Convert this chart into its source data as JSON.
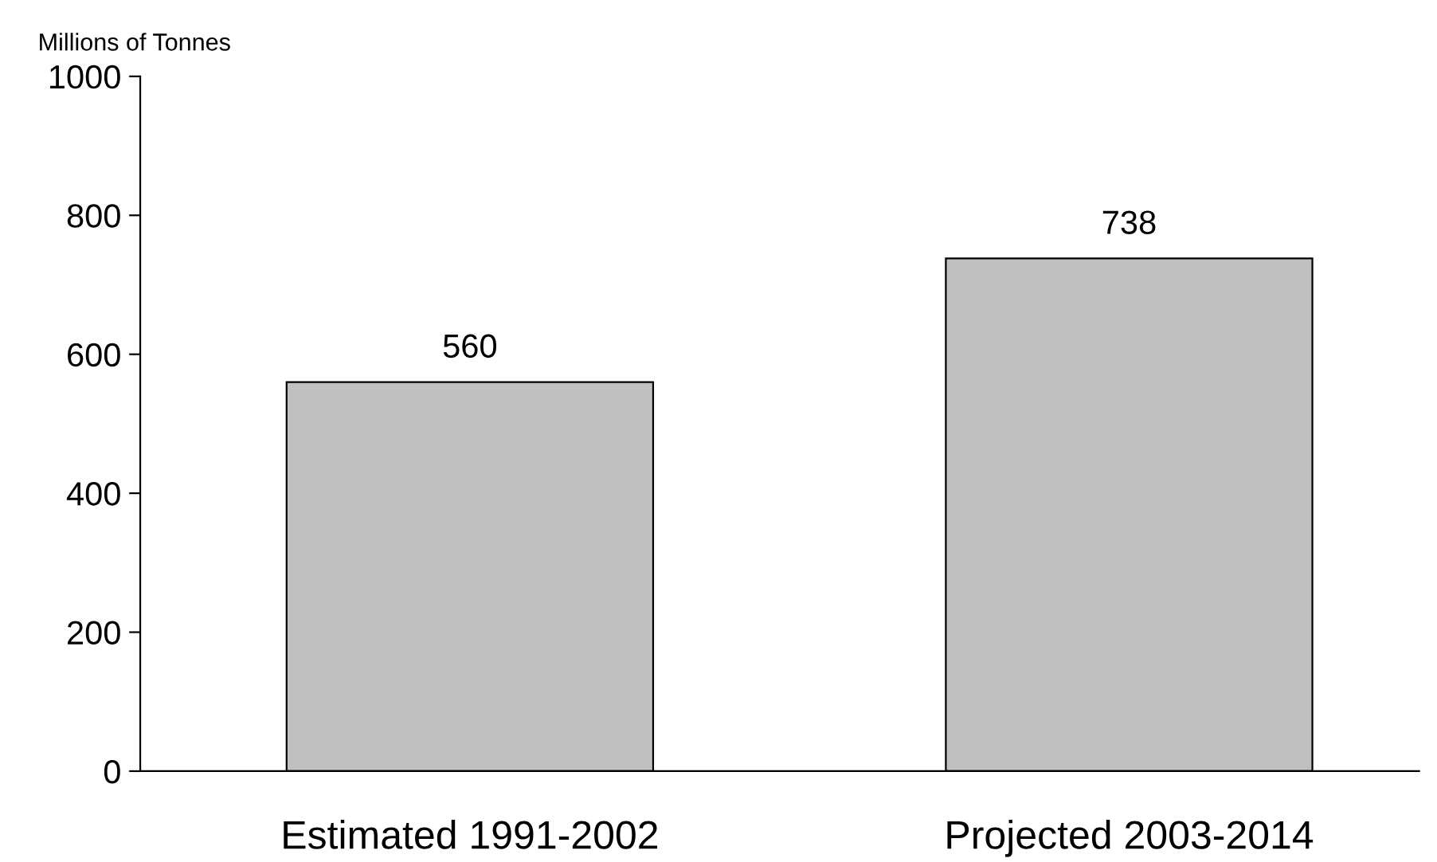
{
  "chart_data": {
    "type": "bar",
    "ylabel": "Millions of Tonnes",
    "categories": [
      "Estimated 1991-2002",
      "Projected 2003-2014"
    ],
    "values": [
      560,
      738
    ],
    "color": "#c0c0c0",
    "ylim": [
      0,
      1000
    ],
    "yticks": [
      0,
      200,
      400,
      600,
      800,
      1000
    ],
    "data_labels": true,
    "grid": false,
    "legend": false
  }
}
